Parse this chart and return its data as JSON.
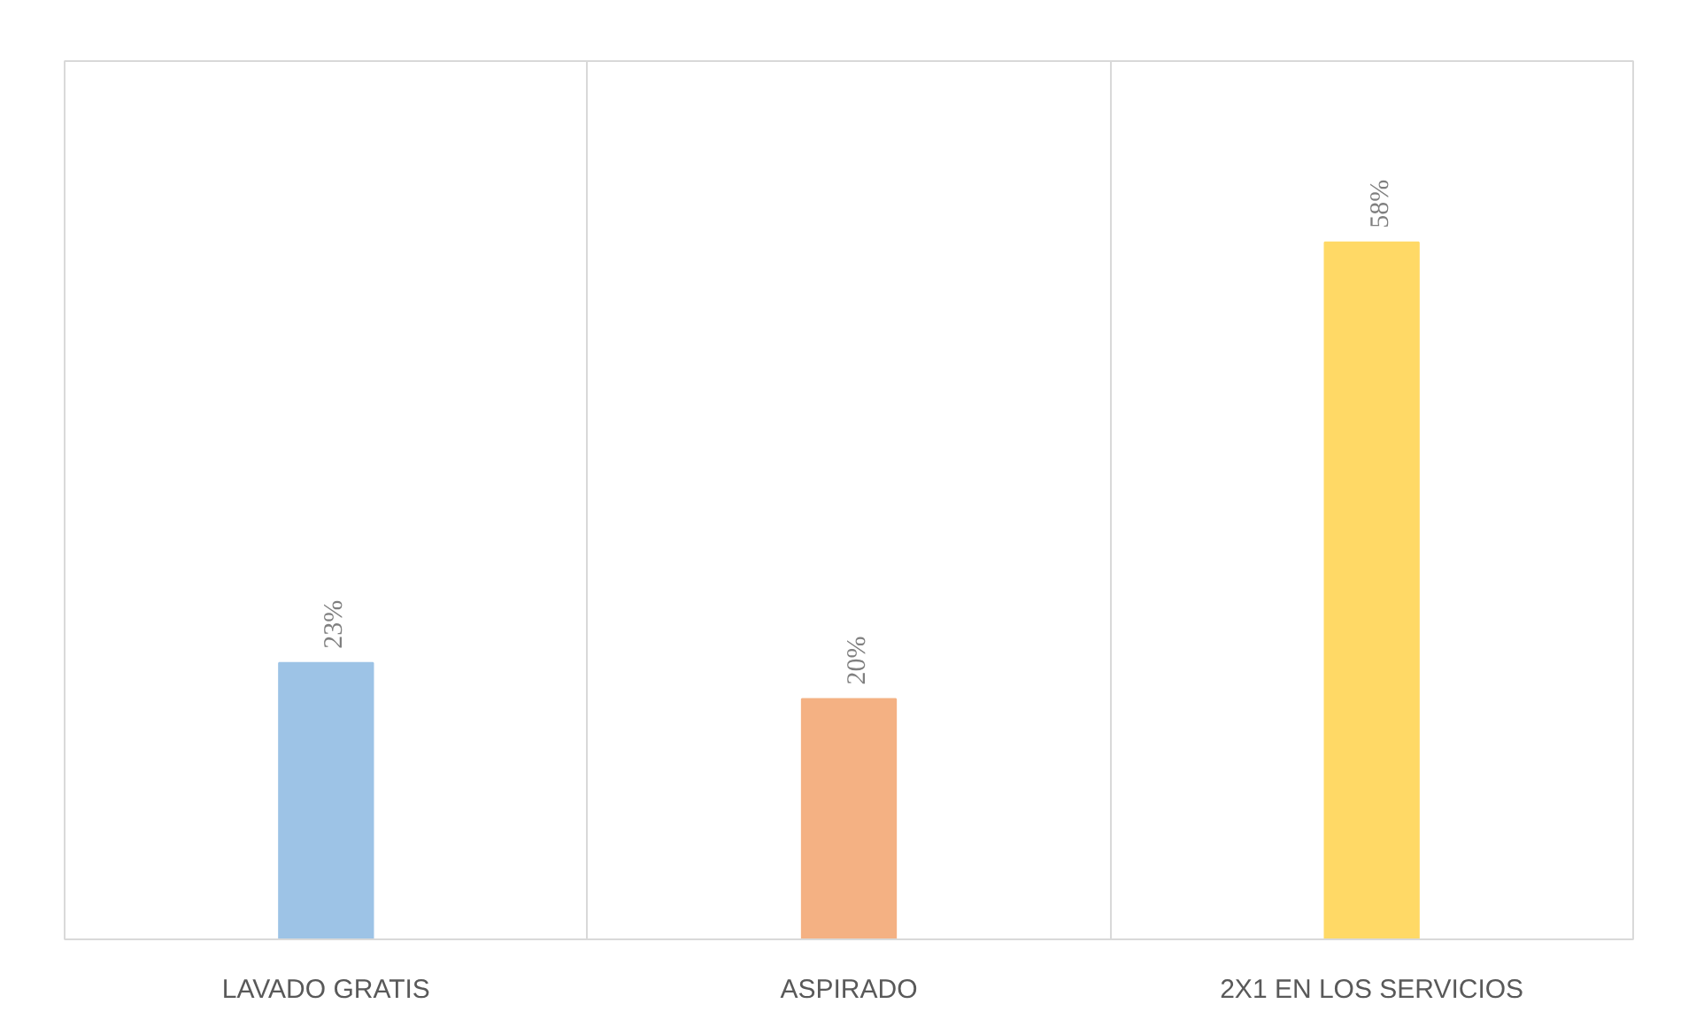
{
  "chart_data": {
    "type": "bar",
    "categories": [
      "LAVADO GRATIS",
      "ASPIRADO",
      "2X1 EN LOS SERVICIOS"
    ],
    "values": [
      23,
      20,
      58
    ],
    "colors": [
      "#9dc3e6",
      "#f4b183",
      "#ffd966"
    ],
    "value_labels": [
      "23%",
      "20%",
      "58%"
    ],
    "grid": "x"
  }
}
